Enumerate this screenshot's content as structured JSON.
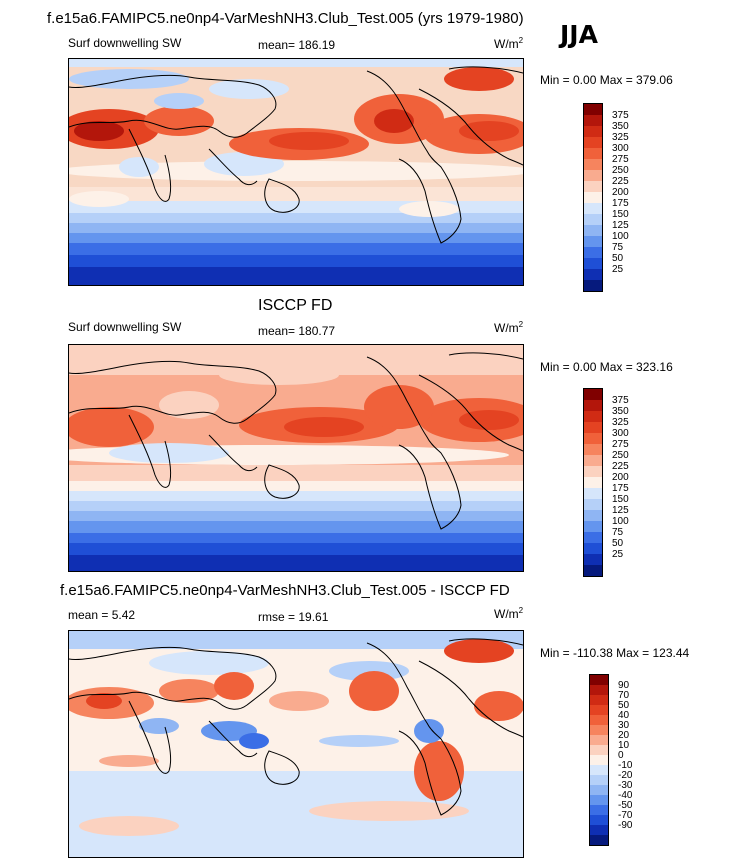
{
  "header": {
    "title": "f.e15a6.FAMIPC5.ne0np4-VarMeshNH3.Club_Test.005 (yrs 1979-1980)",
    "season": "JJA"
  },
  "panels": [
    {
      "left_label": "Surf downwelling SW",
      "center_label": "mean= 186.19",
      "units": "W/m",
      "units_exp": "2",
      "minmax": "Min =   0.00 Max = 379.06",
      "colorbar": {
        "labels": [
          "375",
          "350",
          "325",
          "300",
          "275",
          "250",
          "225",
          "200",
          "175",
          "150",
          "125",
          "100",
          "75",
          "50",
          "25"
        ],
        "colors": [
          "#800000",
          "#b3160b",
          "#d02b14",
          "#e44322",
          "#f0613a",
          "#f6845e",
          "#f9ab8f",
          "#fbd2c0",
          "#fdf1e8",
          "#d6e6fb",
          "#b5d0f8",
          "#8fb5f3",
          "#6495ee",
          "#3b6ee6",
          "#1f4fd6",
          "#0f2fb3",
          "#061a7d"
        ]
      }
    },
    {
      "title": "ISCCP FD",
      "left_label": "Surf downwelling SW",
      "center_label": "mean= 180.77",
      "units": "W/m",
      "units_exp": "2",
      "minmax": "Min =   0.00 Max = 323.16",
      "colorbar": {
        "labels": [
          "375",
          "350",
          "325",
          "300",
          "275",
          "250",
          "225",
          "200",
          "175",
          "150",
          "125",
          "100",
          "75",
          "50",
          "25"
        ],
        "colors": [
          "#800000",
          "#b3160b",
          "#d02b14",
          "#e44322",
          "#f0613a",
          "#f6845e",
          "#f9ab8f",
          "#fbd2c0",
          "#fdf1e8",
          "#d6e6fb",
          "#b5d0f8",
          "#8fb5f3",
          "#6495ee",
          "#3b6ee6",
          "#1f4fd6",
          "#0f2fb3",
          "#061a7d"
        ]
      }
    },
    {
      "title": "f.e15a6.FAMIPC5.ne0np4-VarMeshNH3.Club_Test.005 - ISCCP FD",
      "left_label": "mean =   5.42",
      "center_label": "rmse =  19.61",
      "units": "W/m",
      "units_exp": "2",
      "minmax": "Min = -110.38 Max = 123.44",
      "colorbar": {
        "labels": [
          "90",
          "70",
          "50",
          "40",
          "30",
          "20",
          "10",
          "0",
          "-10",
          "-20",
          "-30",
          "-40",
          "-50",
          "-70",
          "-90"
        ],
        "colors": [
          "#800000",
          "#b3160b",
          "#d02b14",
          "#e44322",
          "#f0613a",
          "#f6845e",
          "#f9ab8f",
          "#fbd2c0",
          "#fdf1e8",
          "#d6e6fb",
          "#b5d0f8",
          "#8fb5f3",
          "#6495ee",
          "#3b6ee6",
          "#1f4fd6",
          "#0f2fb3",
          "#061a7d"
        ]
      }
    }
  ]
}
